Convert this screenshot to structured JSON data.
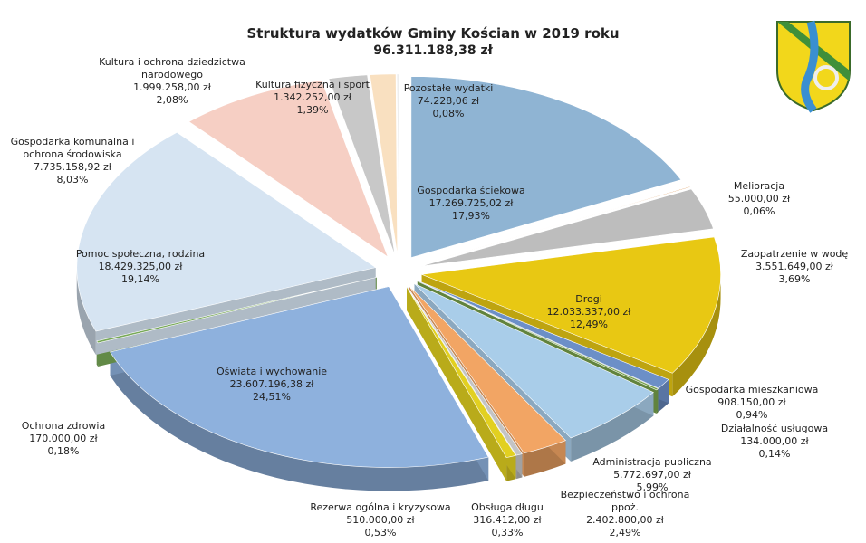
{
  "chart_data": {
    "type": "pie",
    "title": "Struktura wydatków Gminy Kościan w 2019 roku",
    "subtitle": "96.311.188,38 zł",
    "categories": [
      "Gospodarka ściekowa",
      "Melioracja",
      "Zaopatrzenie w wodę",
      "Drogi",
      "Gospodarka mieszkaniowa",
      "Działalność usługowa",
      "Administracja publiczna",
      "Bezpieczeństwo i ochrona ppoż.",
      "Obsługa długu",
      "Rezerwa ogólna i kryzysowa",
      "Oświata i wychowanie",
      "Ochrona zdrowia",
      "Pomoc społeczna, rodzina",
      "Gospodarka komunalna i ochrona środowiska",
      "Kultura i ochrona dziedzictwa narodowego",
      "Kultura fizyczna i sport",
      "Pozostałe wydatki"
    ],
    "values": [
      17.93,
      0.06,
      3.69,
      12.49,
      0.94,
      0.14,
      5.99,
      2.49,
      0.33,
      0.53,
      24.51,
      0.18,
      19.14,
      8.03,
      2.08,
      1.39,
      0.08
    ],
    "value_labels": [
      "17,93%",
      "0,06%",
      "3,69%",
      "12,49%",
      "0,94%",
      "0,14%",
      "5,99%",
      "2,49%",
      "0,33%",
      "0,53%",
      "24,51%",
      "0,18%",
      "19,14%",
      "8,03%",
      "2,08%",
      "1,39%",
      "0,08%"
    ],
    "amounts": [
      "17.269.725,02 zł",
      "55.000,00 zł",
      "3.551.649,00 zł",
      "12.033.337,00 zł",
      "908.150,00 zł",
      "134.000,00 zł",
      "5.772.697,00 zł",
      "2.402.800,00 zł",
      "316.412,00 zł",
      "510.000,00 zł",
      "23.607.196,38 zł",
      "170.000,00 zł",
      "18.429.325,00 zł",
      "7.735.158,92 zł",
      "1.999.258,00 zł",
      "1.342.252,00 zł",
      "74.228,06 zł"
    ],
    "colors": [
      "#8fb4d3",
      "#d07a2a",
      "#bdbdbd",
      "#e8c813",
      "#6c8fc7",
      "#76a04a",
      "#a9cde9",
      "#f2a564",
      "#c4c4c4",
      "#e2d020",
      "#8eb1dd",
      "#77a857",
      "#d6e4f2",
      "#f6cfc4",
      "#c8c8c8",
      "#f9e0c0",
      "#e4e4e4"
    ]
  }
}
